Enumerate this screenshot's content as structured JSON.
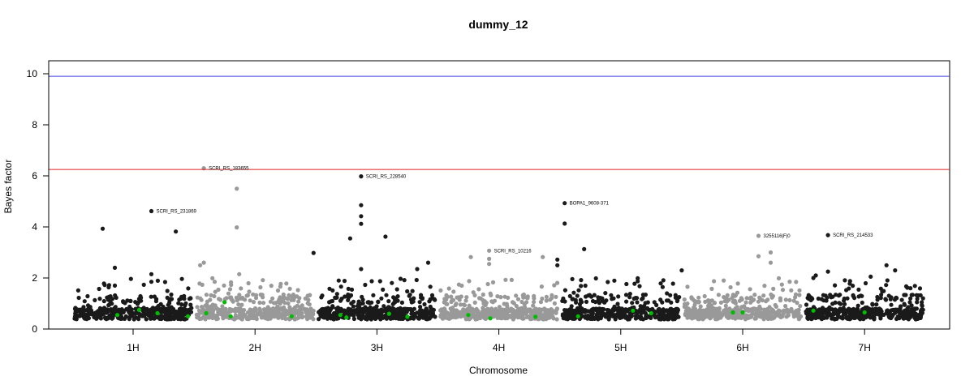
{
  "chart_data": {
    "type": "scatter",
    "title": "dummy_12",
    "xlabel": "Chromosome",
    "ylabel": "Bayes factor",
    "ylim": [
      0,
      10
    ],
    "yticks": [
      0,
      2,
      4,
      6,
      8,
      10
    ],
    "chromosomes": [
      {
        "label": "1H",
        "start": 0.5,
        "end": 1.5,
        "center": 1,
        "color": "#1a1a1a"
      },
      {
        "label": "2H",
        "start": 1.5,
        "end": 2.5,
        "center": 2,
        "color": "#999999"
      },
      {
        "label": "3H",
        "start": 2.5,
        "end": 3.5,
        "center": 3,
        "color": "#1a1a1a"
      },
      {
        "label": "4H",
        "start": 3.5,
        "end": 4.5,
        "center": 4,
        "color": "#999999"
      },
      {
        "label": "5H",
        "start": 4.5,
        "end": 5.5,
        "center": 5,
        "color": "#1a1a1a"
      },
      {
        "label": "6H",
        "start": 5.5,
        "end": 6.5,
        "center": 6,
        "color": "#999999"
      },
      {
        "label": "7H",
        "start": 6.5,
        "end": 7.5,
        "center": 7,
        "color": "#1a1a1a"
      }
    ],
    "thresholds": [
      {
        "value": 9.9,
        "color": "#4444dd"
      },
      {
        "value": 6.25,
        "color": "#dd2222"
      }
    ],
    "highlight_color": "#00bb00",
    "annotations": [
      {
        "label": "SCRI_RS_183655",
        "x": 1.58,
        "y": 6.3
      },
      {
        "label": "SCRI_RS_228540",
        "x": 2.87,
        "y": 5.98
      },
      {
        "label": "SCRI_RS_231869",
        "x": 1.15,
        "y": 4.62
      },
      {
        "label": "BOPA1_9608-371",
        "x": 4.54,
        "y": 4.93
      },
      {
        "label": "SCRI_RS_10216",
        "x": 3.92,
        "y": 3.07
      },
      {
        "label": "3255116|F|0",
        "x": 6.13,
        "y": 3.65
      },
      {
        "label": "SCRI_RS_214533",
        "x": 6.7,
        "y": 3.68
      }
    ],
    "notable_points": [
      {
        "x": 0.75,
        "y": 3.93,
        "chr": 1
      },
      {
        "x": 0.85,
        "y": 2.4,
        "chr": 1
      },
      {
        "x": 0.85,
        "y": 1.7,
        "chr": 1
      },
      {
        "x": 1.15,
        "y": 2.15,
        "chr": 1
      },
      {
        "x": 1.15,
        "y": 1.85,
        "chr": 1
      },
      {
        "x": 1.35,
        "y": 3.82,
        "chr": 1
      },
      {
        "x": 1.58,
        "y": 2.6,
        "chr": 2
      },
      {
        "x": 1.55,
        "y": 2.5,
        "chr": 2
      },
      {
        "x": 1.85,
        "y": 5.5,
        "chr": 2
      },
      {
        "x": 1.85,
        "y": 3.98,
        "chr": 2
      },
      {
        "x": 1.87,
        "y": 2.15,
        "chr": 2
      },
      {
        "x": 2.48,
        "y": 2.98,
        "chr": 3
      },
      {
        "x": 2.87,
        "y": 4.85,
        "chr": 3
      },
      {
        "x": 2.87,
        "y": 4.42,
        "chr": 3
      },
      {
        "x": 2.87,
        "y": 4.12,
        "chr": 3
      },
      {
        "x": 2.78,
        "y": 3.55,
        "chr": 3
      },
      {
        "x": 3.07,
        "y": 3.62,
        "chr": 3
      },
      {
        "x": 3.42,
        "y": 2.6,
        "chr": 3
      },
      {
        "x": 3.33,
        "y": 2.35,
        "chr": 3
      },
      {
        "x": 2.87,
        "y": 2.35,
        "chr": 3
      },
      {
        "x": 3.92,
        "y": 2.75,
        "chr": 4
      },
      {
        "x": 3.92,
        "y": 2.55,
        "chr": 4
      },
      {
        "x": 3.77,
        "y": 2.82,
        "chr": 4
      },
      {
        "x": 4.36,
        "y": 2.82,
        "chr": 4
      },
      {
        "x": 4.54,
        "y": 4.13,
        "chr": 5
      },
      {
        "x": 4.48,
        "y": 2.72,
        "chr": 5
      },
      {
        "x": 4.48,
        "y": 2.5,
        "chr": 5
      },
      {
        "x": 4.7,
        "y": 3.13,
        "chr": 5
      },
      {
        "x": 5.5,
        "y": 2.3,
        "chr": 5
      },
      {
        "x": 6.13,
        "y": 2.85,
        "chr": 6
      },
      {
        "x": 6.23,
        "y": 3.0,
        "chr": 6
      },
      {
        "x": 6.23,
        "y": 2.6,
        "chr": 6
      },
      {
        "x": 6.7,
        "y": 2.25,
        "chr": 7
      },
      {
        "x": 7.05,
        "y": 2.05,
        "chr": 7
      },
      {
        "x": 7.18,
        "y": 2.5,
        "chr": 7
      },
      {
        "x": 7.25,
        "y": 2.3,
        "chr": 7
      },
      {
        "x": 6.6,
        "y": 2.1,
        "chr": 7
      }
    ],
    "green_points": [
      {
        "x": 0.87,
        "y": 0.55
      },
      {
        "x": 1.05,
        "y": 0.75
      },
      {
        "x": 1.2,
        "y": 0.62
      },
      {
        "x": 1.45,
        "y": 0.5
      },
      {
        "x": 1.6,
        "y": 0.62
      },
      {
        "x": 1.75,
        "y": 1.05
      },
      {
        "x": 1.8,
        "y": 0.5
      },
      {
        "x": 2.3,
        "y": 0.5
      },
      {
        "x": 2.7,
        "y": 0.55
      },
      {
        "x": 2.75,
        "y": 0.45
      },
      {
        "x": 3.1,
        "y": 0.6
      },
      {
        "x": 3.25,
        "y": 0.48
      },
      {
        "x": 3.75,
        "y": 0.55
      },
      {
        "x": 3.93,
        "y": 0.42
      },
      {
        "x": 4.3,
        "y": 0.48
      },
      {
        "x": 4.65,
        "y": 0.5
      },
      {
        "x": 5.1,
        "y": 0.72
      },
      {
        "x": 5.25,
        "y": 0.62
      },
      {
        "x": 5.92,
        "y": 0.65
      },
      {
        "x": 6.0,
        "y": 0.65
      },
      {
        "x": 6.58,
        "y": 0.72
      },
      {
        "x": 7.0,
        "y": 0.65
      }
    ]
  }
}
